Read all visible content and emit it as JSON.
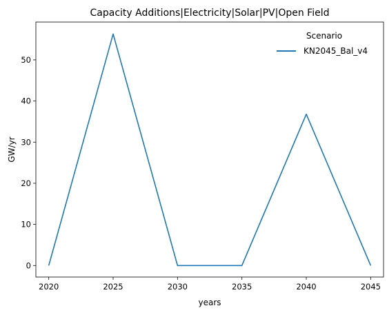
{
  "chart_data": {
    "type": "line",
    "title": "Capacity Additions|Electricity|Solar|PV|Open Field",
    "xlabel": "years",
    "ylabel": "GW/yr",
    "x": [
      2020,
      2025,
      2030,
      2035,
      2040,
      2045
    ],
    "x_ticks": [
      "2020",
      "2025",
      "2030",
      "2035",
      "2040",
      "2045"
    ],
    "y_ticks": [
      "0",
      "10",
      "20",
      "30",
      "40",
      "50"
    ],
    "xlim": [
      2019,
      2046
    ],
    "ylim": [
      -2.8,
      59.2
    ],
    "grid": false,
    "legend": {
      "title": "Scenario",
      "placement": "top-right"
    },
    "series": [
      {
        "name": "KN2045_Bal_v4",
        "color": "#1f77b4",
        "values": [
          0,
          56.3,
          0,
          0,
          36.8,
          0
        ]
      }
    ]
  }
}
